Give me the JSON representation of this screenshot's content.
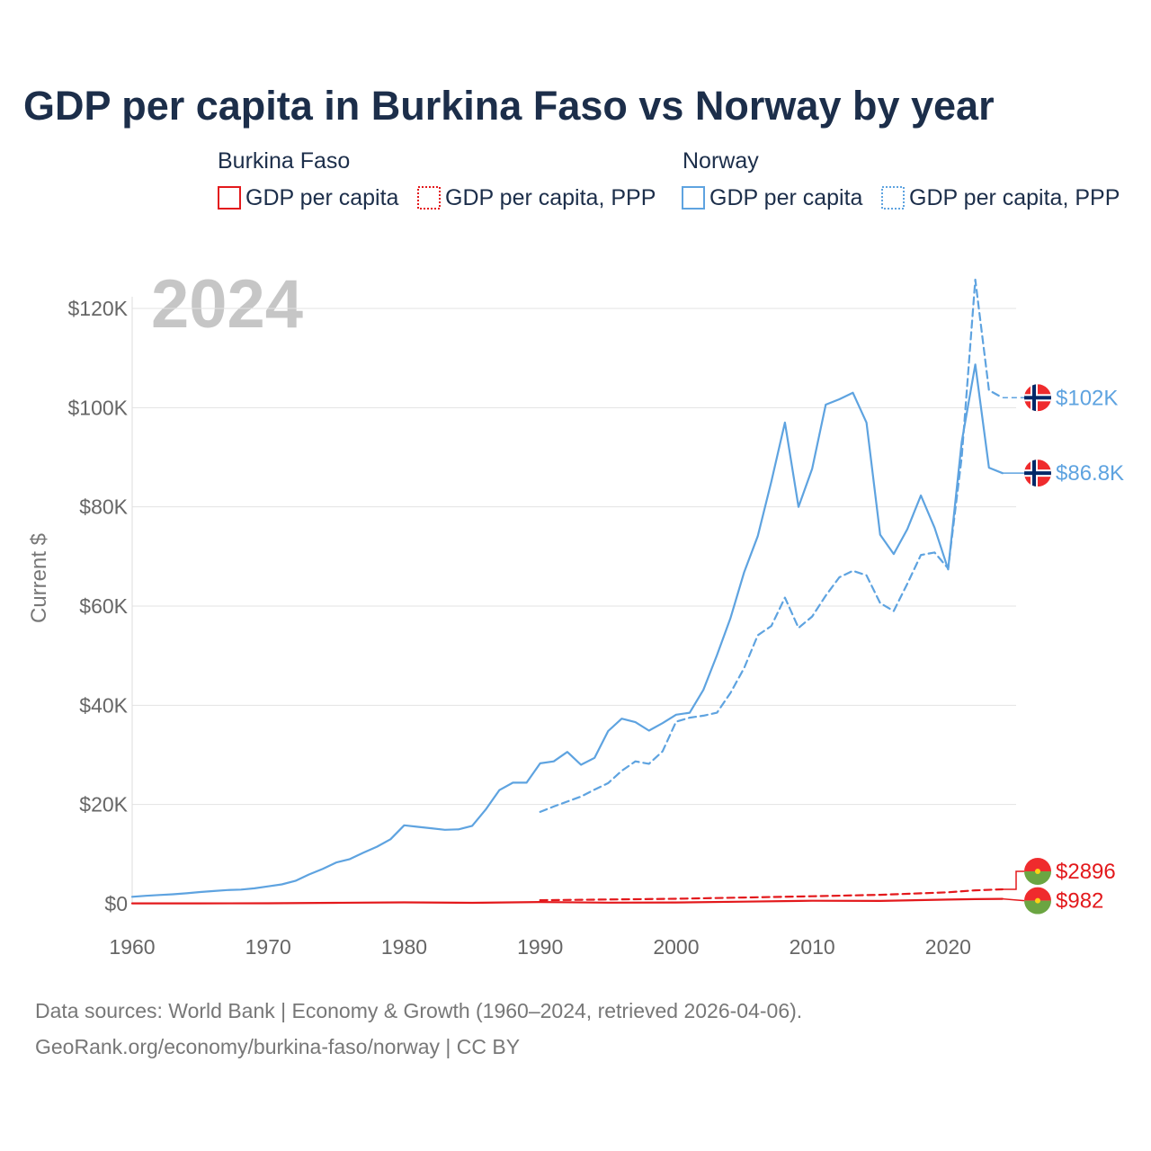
{
  "title": "GDP per capita in Burkina Faso vs Norway by year",
  "legend": {
    "groups": [
      {
        "name": "Burkina Faso",
        "color": "#e3191c",
        "items": [
          {
            "label": "GDP per capita",
            "style": "solid"
          },
          {
            "label": "GDP per capita, PPP",
            "style": "dotted"
          }
        ]
      },
      {
        "name": "Norway",
        "color": "#5ea3e0",
        "items": [
          {
            "label": "GDP per capita",
            "style": "solid"
          },
          {
            "label": "GDP per capita, PPP",
            "style": "dotted"
          }
        ]
      }
    ]
  },
  "year_label": "2024",
  "source": {
    "line1": "Data sources: World Bank | Economy & Growth (1960–2024, retrieved 2026-04-06).",
    "line2": "GeoRank.org/economy/burkina-faso/norway | CC BY"
  },
  "chart_data": {
    "type": "line",
    "title": "GDP per capita in Burkina Faso vs Norway by year",
    "xlabel": "",
    "ylabel": "Current $",
    "xlim": [
      1960,
      2025
    ],
    "ylim": [
      0,
      130000
    ],
    "x_ticks": [
      1960,
      1970,
      1980,
      1990,
      2000,
      2010,
      2020
    ],
    "x_tick_labels": [
      "1960",
      "1970",
      "1980",
      "1990",
      "2000",
      "2010",
      "2020"
    ],
    "y_ticks": [
      0,
      20000,
      40000,
      60000,
      80000,
      100000,
      120000
    ],
    "y_tick_labels": [
      "$0",
      "$20K",
      "$40K",
      "$60K",
      "$80K",
      "$100K",
      "$120K"
    ],
    "grid": true,
    "series": [
      {
        "name": "Norway GDP per capita",
        "color": "#5ea3e0",
        "dash": "solid",
        "end_label": "$86.8K",
        "x": [
          1960,
          1961,
          1962,
          1963,
          1964,
          1965,
          1966,
          1967,
          1968,
          1969,
          1970,
          1971,
          1972,
          1973,
          1974,
          1975,
          1976,
          1977,
          1978,
          1979,
          1980,
          1981,
          1982,
          1983,
          1984,
          1985,
          1986,
          1987,
          1988,
          1989,
          1990,
          1991,
          1992,
          1993,
          1994,
          1995,
          1996,
          1997,
          1998,
          1999,
          2000,
          2001,
          2002,
          2003,
          2004,
          2005,
          2006,
          2007,
          2008,
          2009,
          2010,
          2011,
          2012,
          2013,
          2014,
          2015,
          2016,
          2017,
          2018,
          2019,
          2020,
          2021,
          2022,
          2023,
          2024
        ],
        "values": [
          1400,
          1600,
          1750,
          1900,
          2100,
          2350,
          2550,
          2750,
          2850,
          3100,
          3500,
          3900,
          4600,
          5900,
          7000,
          8300,
          9000,
          10300,
          11500,
          13000,
          15800,
          15500,
          15200,
          14900,
          15000,
          15700,
          19000,
          22900,
          24400,
          24400,
          28300,
          28700,
          30600,
          28000,
          29400,
          34800,
          37300,
          36600,
          34900,
          36400,
          38100,
          38500,
          43100,
          50100,
          57600,
          66800,
          74100,
          85100,
          97000,
          80000,
          87700,
          100600,
          101700,
          103000,
          97000,
          74400,
          70500,
          75500,
          82300,
          75800,
          67400,
          93100,
          108700,
          87900,
          86800
        ]
      },
      {
        "name": "Norway GDP per capita, PPP",
        "color": "#5ea3e0",
        "dash": "dashed",
        "end_label": "$102K",
        "x": [
          1990,
          1991,
          1992,
          1993,
          1994,
          1995,
          1996,
          1997,
          1998,
          1999,
          2000,
          2001,
          2002,
          2003,
          2004,
          2005,
          2006,
          2007,
          2008,
          2009,
          2010,
          2011,
          2012,
          2013,
          2014,
          2015,
          2016,
          2017,
          2018,
          2019,
          2020,
          2021,
          2022,
          2023,
          2024
        ],
        "values": [
          18500,
          19600,
          20600,
          21600,
          23000,
          24300,
          26800,
          28700,
          28200,
          30700,
          36700,
          37500,
          37900,
          38500,
          42500,
          47500,
          54100,
          56000,
          61700,
          55600,
          57900,
          62100,
          65800,
          67100,
          66200,
          60600,
          59000,
          64500,
          70300,
          70800,
          67600,
          90000,
          125800,
          103500,
          102000
        ]
      },
      {
        "name": "Burkina Faso GDP per capita",
        "color": "#e3191c",
        "dash": "solid",
        "end_label": "$982",
        "x": [
          1960,
          1965,
          1970,
          1975,
          1980,
          1985,
          1990,
          1995,
          2000,
          2005,
          2010,
          2015,
          2020,
          2022,
          2024
        ],
        "values": [
          70,
          80,
          90,
          180,
          270,
          190,
          350,
          220,
          250,
          420,
          600,
          570,
          830,
          920,
          982
        ]
      },
      {
        "name": "Burkina Faso GDP per capita, PPP",
        "color": "#e3191c",
        "dash": "dashed",
        "end_label": "$2896",
        "x": [
          1990,
          1995,
          2000,
          2005,
          2010,
          2015,
          2020,
          2022,
          2024
        ],
        "values": [
          700,
          850,
          1000,
          1250,
          1500,
          1800,
          2300,
          2700,
          2896
        ]
      }
    ]
  },
  "flags": {
    "norway": {
      "red": "#ef2b2d",
      "blue": "#002868",
      "white": "#ffffff"
    },
    "burkina_faso": {
      "red": "#ef2b2d",
      "green": "#6ba542",
      "star": "#fcd116"
    }
  }
}
